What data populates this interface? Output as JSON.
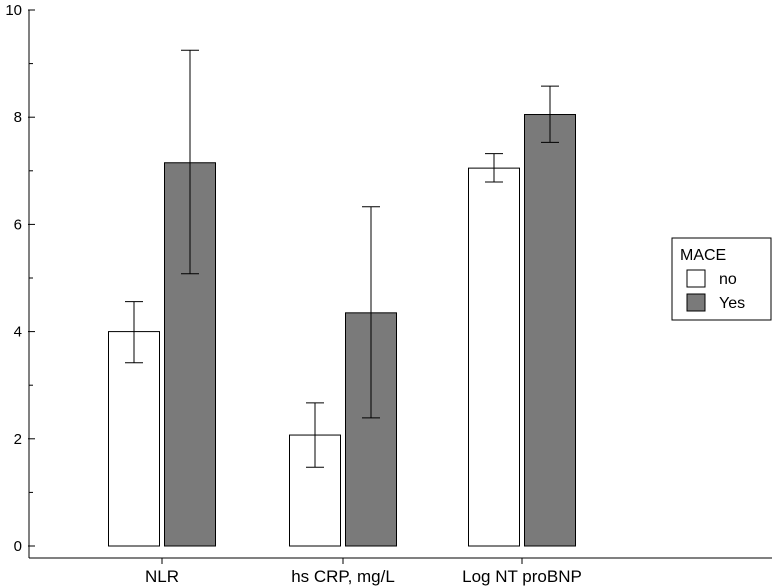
{
  "chart_data": {
    "type": "bar",
    "title": "",
    "xlabel": "",
    "ylabel": "",
    "ylim": [
      0,
      10
    ],
    "yticks": [
      0,
      2,
      4,
      6,
      8,
      10
    ],
    "yticks_minor_step": 1,
    "categories": [
      "NLR",
      "hs CRP, mg/L",
      "Log NT proBNP"
    ],
    "legend": {
      "title": "MACE",
      "position": "right"
    },
    "series": [
      {
        "name": "no",
        "color": "#ffffff",
        "values": [
          4.0,
          2.07,
          7.05
        ],
        "error_low": [
          3.42,
          1.47,
          6.79
        ],
        "error_high": [
          4.56,
          2.67,
          7.32
        ]
      },
      {
        "name": "Yes",
        "color": "#7a7a7a",
        "values": [
          7.15,
          4.35,
          8.05
        ],
        "error_low": [
          5.08,
          2.39,
          7.53
        ],
        "error_high": [
          9.25,
          6.33,
          8.58
        ]
      }
    ]
  }
}
